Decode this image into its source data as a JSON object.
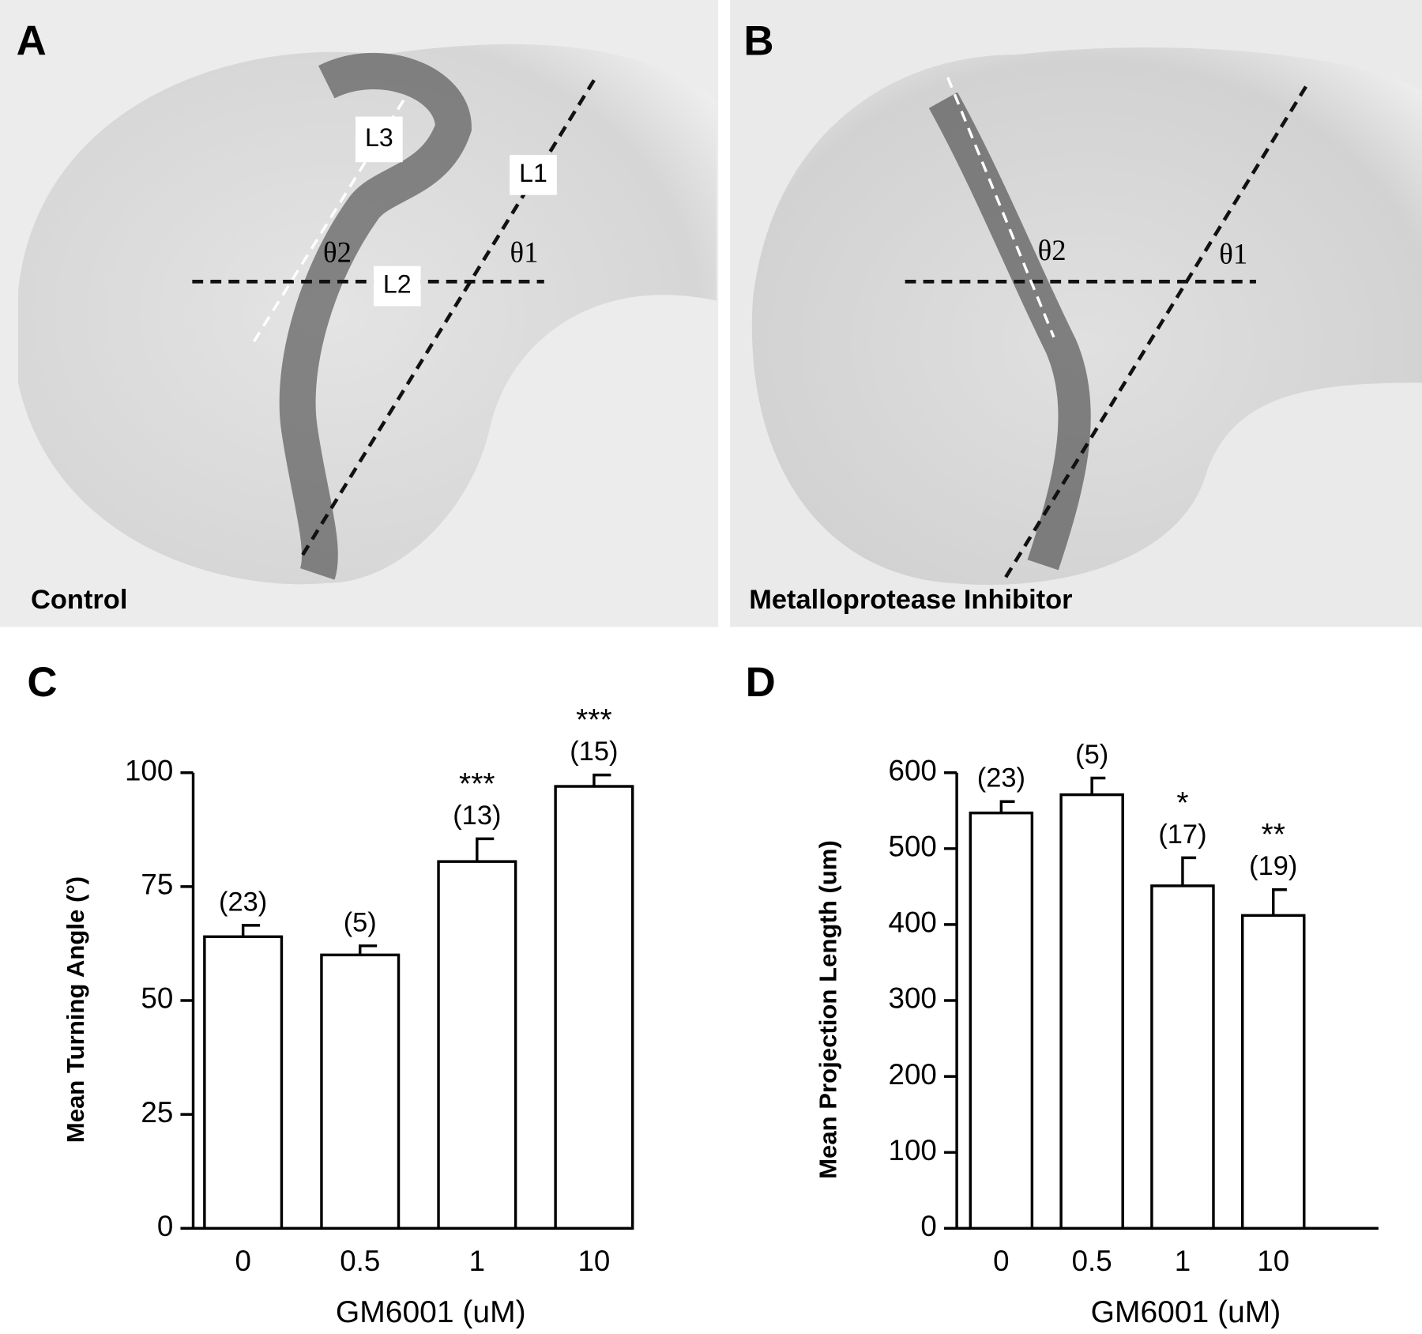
{
  "panels": [
    {
      "label": "A",
      "caption": "Control",
      "annotations": [
        "L3",
        "L1",
        "θ2",
        "θ1",
        "L2"
      ]
    },
    {
      "label": "B",
      "caption": "Metalloprotease Inhibitor",
      "annotations": [
        "θ2",
        "θ1"
      ]
    }
  ],
  "chart_data": [
    {
      "type": "bar",
      "label": "C",
      "categories": [
        "0",
        "0.5",
        "1",
        "10"
      ],
      "values": [
        64,
        60,
        80.5,
        97
      ],
      "errors": [
        2.5,
        2,
        5,
        2.5
      ],
      "counts": [
        "(23)",
        "(5)",
        "(13)",
        "(15)"
      ],
      "significance": [
        null,
        null,
        "***",
        "***"
      ],
      "xlabel": "GM6001 (uM)",
      "ylabel": "Mean Turning Angle (°)",
      "ylim": [
        0,
        100
      ],
      "yticks": [
        0,
        25,
        50,
        75,
        100
      ],
      "color": "#ffffff"
    },
    {
      "type": "bar",
      "label": "D",
      "categories": [
        "0",
        "0.5",
        "1",
        "10"
      ],
      "values": [
        547,
        571,
        451,
        412
      ],
      "errors": [
        15,
        22,
        37,
        34
      ],
      "counts": [
        "(23)",
        "(5)",
        "(17)",
        "(19)"
      ],
      "significance": [
        null,
        null,
        "*",
        "**"
      ],
      "xlabel": "GM6001 (uM)",
      "ylabel": "Mean Projection Length (um)",
      "ylim": [
        0,
        600
      ],
      "yticks": [
        0,
        100,
        200,
        300,
        400,
        500,
        600
      ],
      "color": "#ffffff"
    }
  ]
}
